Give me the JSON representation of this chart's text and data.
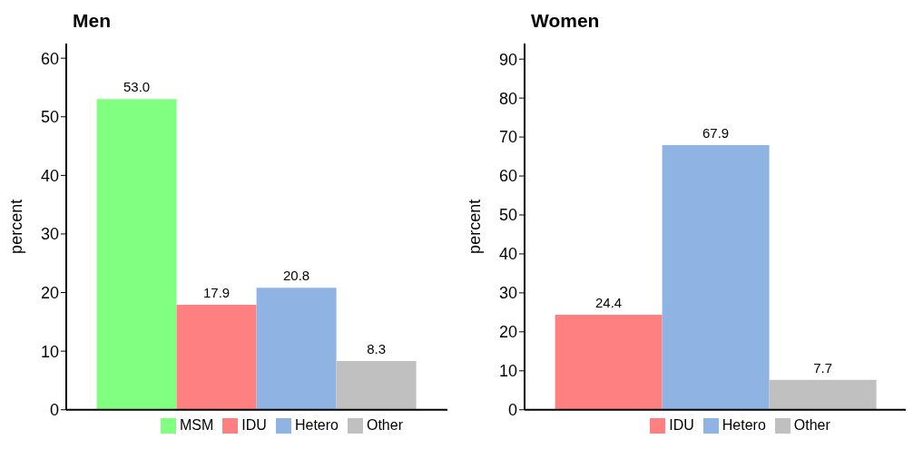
{
  "chart_data": [
    {
      "type": "bar",
      "title": "Men",
      "ylabel": "percent",
      "categories": [
        null
      ],
      "series": [
        {
          "name": "MSM",
          "color": "#80ff80",
          "values": [
            53.0
          ],
          "value_labels": [
            "53.0"
          ]
        },
        {
          "name": "IDU",
          "color": "#ff8080",
          "values": [
            17.9
          ],
          "value_labels": [
            "17.9"
          ]
        },
        {
          "name": "Hetero",
          "color": "#8fb4e3",
          "values": [
            20.8
          ],
          "value_labels": [
            "20.8"
          ]
        },
        {
          "name": "Other",
          "color": "#c0c0c0",
          "values": [
            8.3
          ],
          "value_labels": [
            "8.3"
          ]
        }
      ],
      "ylim": [
        0,
        62.5
      ],
      "yticks": [
        0,
        10,
        20,
        30,
        40,
        50,
        60
      ],
      "legend": "bottom",
      "tick_labels": "y",
      "grid": false
    },
    {
      "type": "bar",
      "title": "Women",
      "ylabel": "percent",
      "categories": [
        null
      ],
      "series": [
        {
          "name": "IDU",
          "color": "#ff8080",
          "values": [
            24.4
          ],
          "value_labels": [
            "24.4"
          ]
        },
        {
          "name": "Hetero",
          "color": "#8fb4e3",
          "values": [
            67.9
          ],
          "value_labels": [
            "67.9"
          ]
        },
        {
          "name": "Other",
          "color": "#c0c0c0",
          "values": [
            7.7
          ],
          "value_labels": [
            "7.7"
          ]
        }
      ],
      "ylim": [
        0,
        94
      ],
      "yticks": [
        0,
        10,
        20,
        30,
        40,
        50,
        60,
        70,
        80,
        90
      ],
      "legend": "bottom",
      "tick_labels": "y",
      "grid": false
    }
  ]
}
